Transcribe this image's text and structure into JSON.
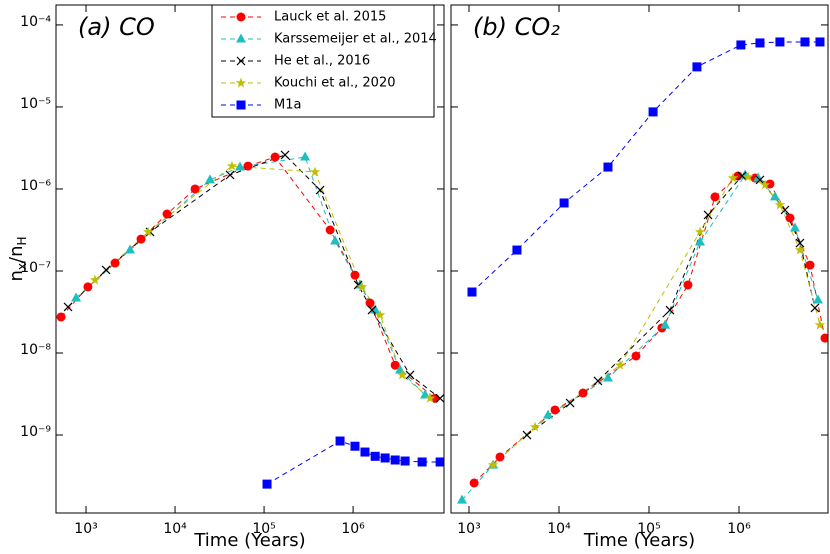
{
  "chart_data": [
    {
      "type": "line",
      "title": "(a) CO",
      "xlabel": "Time (Years)",
      "ylabel": [
        "n",
        "x",
        "/n",
        "H"
      ],
      "xscale": "log",
      "yscale": "log",
      "xlim": [
        460,
        10500000
      ],
      "ylim": [
        1.12e-10,
        0.000175
      ],
      "xticks": [
        {
          "value": 1000,
          "label": "10³"
        },
        {
          "value": 10000,
          "label": "10⁴"
        },
        {
          "value": 100000,
          "label": "10⁵"
        },
        {
          "value": 1000000,
          "label": "10⁶"
        }
      ],
      "yticks": [
        {
          "value": 1e-09,
          "label": "10⁻⁹"
        },
        {
          "value": 1e-08,
          "label": "10⁻⁸"
        },
        {
          "value": 1e-07,
          "label": "10⁻⁷"
        },
        {
          "value": 1e-06,
          "label": "10⁻⁶"
        },
        {
          "value": 1e-05,
          "label": "10⁻⁵"
        },
        {
          "value": 0.0001,
          "label": "10⁻⁴"
        }
      ],
      "legend": "upper right",
      "series": [
        {
          "name": "Lauck et al. 2015",
          "color": "#ff0000",
          "marker": "circle",
          "x": [
            524,
            1050,
            2120,
            4150,
            8130,
            16800,
            66000,
            133000,
            552000,
            1050000,
            1550000,
            2970000,
            8300000
          ],
          "values": [
            2.75e-08,
            6.4e-08,
            1.25e-07,
            2.45e-07,
            4.95e-07,
            1e-06,
            1.9e-06,
            2.45e-06,
            3.16e-07,
            8.9e-08,
            4.07e-08,
            7.1e-09,
            2.8e-09
          ]
        },
        {
          "name": "Karssemeijer et al., 2014",
          "color": "#1fbfbf",
          "marker": "triangle",
          "x": [
            773,
            3120,
            24700,
            53700,
            289000,
            628000,
            1200000,
            1770000,
            3370000,
            6440000
          ],
          "values": [
            4.69e-08,
            1.8e-07,
            1.29e-06,
            1.85e-06,
            2.45e-06,
            2.32e-07,
            6.75e-08,
            3.34e-08,
            6.2e-09,
            3.08e-09
          ]
        },
        {
          "name": "He et al., 2016",
          "color": "#000000",
          "marker": "x",
          "x": [
            628,
            1680,
            5240,
            41500,
            172000,
            426000,
            1140000,
            1630000,
            4360000,
            9500000
          ],
          "values": [
            3.64e-08,
            1.03e-07,
            2.99e-07,
            1.48e-06,
            2.6e-06,
            9.7e-07,
            6.75e-08,
            3.34e-08,
            5.4e-09,
            2.8e-09
          ]
        },
        {
          "name": "Kouchi et al., 2020",
          "color": "#bfbf00",
          "marker": "star",
          "x": [
            1260,
            4980,
            43600,
            374000,
            1260000,
            2010000,
            3560000,
            7330000
          ],
          "values": [
            7.76e-08,
            2.99e-07,
            1.9e-06,
            1.61e-06,
            6.38e-08,
            2.9e-08,
            5.4e-09,
            2.8e-09
          ]
        },
        {
          "name": "M1a",
          "color": "#0000ff",
          "marker": "square",
          "x": [
            108000,
            714000,
            1050000,
            1360000,
            1770000,
            2290000,
            2970000,
            3840000,
            5960000,
            9500000
          ],
          "values": [
            2.52e-10,
            8.45e-10,
            7.3e-10,
            6.2e-10,
            5.5e-10,
            5.25e-10,
            4.96e-10,
            4.82e-10,
            4.69e-10,
            4.69e-10
          ]
        }
      ]
    },
    {
      "type": "line",
      "title": "(b) CO₂",
      "xlabel": "Time (Years)",
      "xscale": "log",
      "yscale": "log",
      "xlim": [
        631,
        9750000
      ],
      "ylim": [
        1.12e-10,
        0.000175
      ],
      "xticks": [
        {
          "value": 1000,
          "label": "10³"
        },
        {
          "value": 10000,
          "label": "10⁴"
        },
        {
          "value": 100000,
          "label": "10⁵"
        },
        {
          "value": 1000000,
          "label": "10⁶"
        }
      ],
      "yticks": [
        1e-09,
        1e-08,
        1e-07,
        1e-06,
        1e-05,
        0.0001
      ],
      "series": [
        {
          "color": "#ff0000",
          "marker": "circle",
          "x": [
            1140,
            2210,
            9030,
            18500,
            71700,
            139000,
            271000,
            541000,
            975000,
            1510000,
            2210000,
            3690000,
            6150000,
            9030000
          ],
          "values": [
            2.6e-10,
            5.4e-10,
            2.02e-09,
            3.25e-09,
            9.2e-09,
            2.02e-08,
            6.75e-08,
            8e-07,
            1.44e-06,
            1.36e-06,
            1.15e-06,
            4.43e-07,
            1.18e-07,
            1.52e-08
          ]
        },
        {
          "color": "#1fbfbf",
          "marker": "triangle",
          "x": [
            836,
            1850,
            7550,
            35000,
            151000,
            369000,
            1170000,
            1630000,
            2510000,
            4190000,
            7550000
          ],
          "values": [
            1.61e-10,
            4.3e-10,
            1.75e-09,
            4.95e-09,
            2.19e-08,
            2.26e-07,
            1.48e-06,
            1.36e-06,
            8e-07,
            3.34e-07,
            4.43e-08
          ]
        },
        {
          "color": "#000000",
          "marker": "x",
          "x": [
            4410,
            13300,
            27100,
            171000,
            453000,
            1080000,
            1710000,
            3240000,
            4760000,
            6980000
          ],
          "values": [
            1e-09,
            2.45e-09,
            4.56e-09,
            3.34e-08,
            4.82e-07,
            1.44e-06,
            1.29e-06,
            5.54e-07,
            2.19e-07,
            3.54e-08
          ]
        },
        {
          "color": "#bfbf00",
          "marker": "star",
          "x": [
            1850,
            5410,
            47600,
            369000,
            858000,
            1260000,
            1950000,
            2850000,
            4760000,
            7940000
          ],
          "values": [
            4.3e-10,
            1.25e-09,
            7.1e-09,
            2.99e-07,
            1.36e-06,
            1.4e-06,
            1.12e-06,
            6.38e-07,
            1.8e-07,
            2.19e-08
          ]
        },
        {
          "color": "#0000ff",
          "marker": "square",
          "x": [
            1080,
            3410,
            11400,
            35000,
            111000,
            341000,
            1050000,
            1710000,
            2850000,
            5410000,
            7940000
          ],
          "values": [
            5.54e-08,
            1.8e-07,
            6.75e-07,
            1.85e-06,
            8.7e-06,
            3.08e-05,
            5.7e-05,
            6.03e-05,
            6.2e-05,
            6.2e-05,
            6.2e-05
          ]
        }
      ]
    }
  ]
}
